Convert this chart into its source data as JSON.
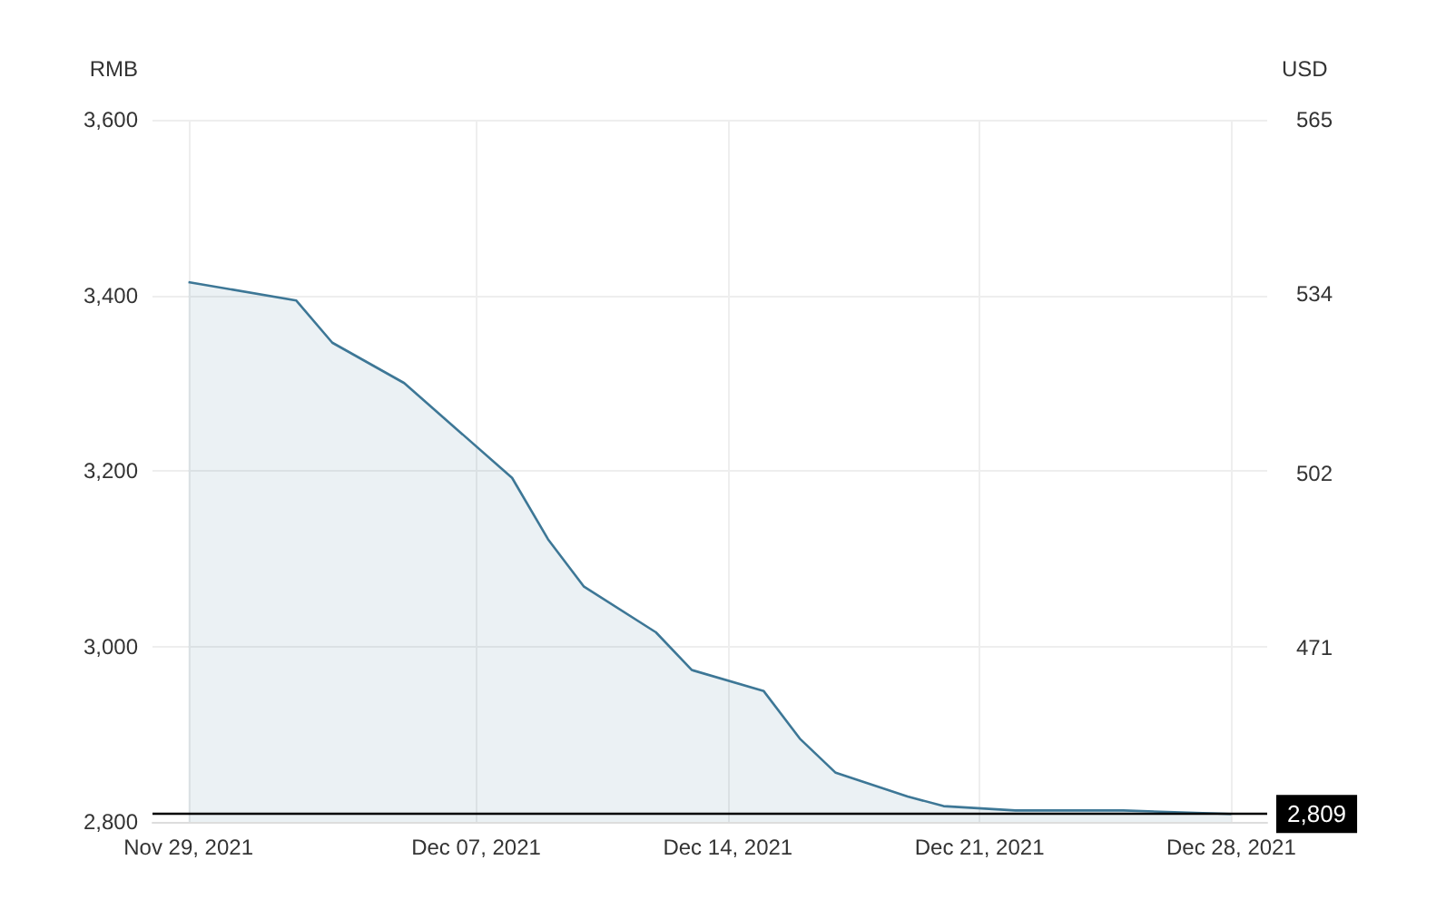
{
  "chart_data": {
    "type": "area",
    "ylabel": "RMB",
    "y2label": "USD",
    "x": [
      "2021-11-29",
      "2021-12-02",
      "2021-12-03",
      "2021-12-05",
      "2021-12-08",
      "2021-12-09",
      "2021-12-10",
      "2021-12-12",
      "2021-12-13",
      "2021-12-15",
      "2021-12-16",
      "2021-12-17",
      "2021-12-19",
      "2021-12-20",
      "2021-12-22",
      "2021-12-25",
      "2021-12-28"
    ],
    "series": [
      {
        "color": "#3d7796",
        "values": [
          3415,
          3394,
          3346,
          3300,
          3192,
          3122,
          3068,
          3016,
          2973,
          2949,
          2895,
          2856,
          2829,
          2818,
          2813,
          2813,
          2809
        ]
      }
    ],
    "xlim": [
      "2021-11-28",
      "2021-12-29"
    ],
    "xticks": [
      {
        "value": "2021-11-29",
        "label": "Nov 29, 2021"
      },
      {
        "value": "2021-12-07",
        "label": "Dec 07, 2021"
      },
      {
        "value": "2021-12-14",
        "label": "Dec 14, 2021"
      },
      {
        "value": "2021-12-21",
        "label": "Dec 21, 2021"
      },
      {
        "value": "2021-12-28",
        "label": "Dec 28, 2021"
      }
    ],
    "ylim": [
      2800,
      3600
    ],
    "yticks": [
      {
        "value": 2800,
        "label": "2,800"
      },
      {
        "value": 3000,
        "label": "3,000"
      },
      {
        "value": 3200,
        "label": "3,200"
      },
      {
        "value": 3400,
        "label": "3,400"
      },
      {
        "value": 3600,
        "label": "3,600"
      }
    ],
    "y2lim": [
      440,
      565
    ],
    "y2ticks": [
      471,
      502,
      534,
      565
    ],
    "ref_lines": [
      {
        "axis": "y",
        "value": 2809,
        "label": "2,809",
        "color": "#000000"
      }
    ],
    "grid": true,
    "marker": "none",
    "line_style": "solid"
  }
}
